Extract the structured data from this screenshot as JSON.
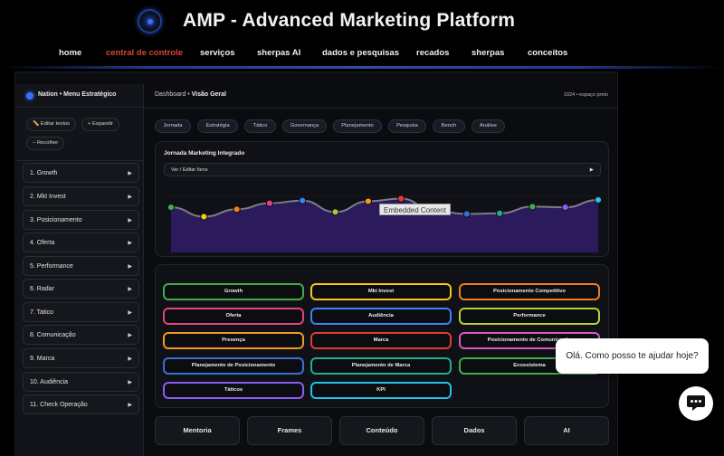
{
  "header": {
    "title": "AMP - Advanced Marketing Platform",
    "logo_icon": "target-logo-icon",
    "nav": [
      {
        "label": "home",
        "active": false
      },
      {
        "label": "central de controle",
        "active": true
      },
      {
        "label": "serviços",
        "active": false
      },
      {
        "label": "sherpas AI",
        "active": false
      },
      {
        "label": "dados e pesquisas",
        "active": false
      },
      {
        "label": "recados",
        "active": false
      },
      {
        "label": "sherpas",
        "active": false
      },
      {
        "label": "conceitos",
        "active": false
      }
    ]
  },
  "sidebar": {
    "title": "Nation • Menu Estratégico",
    "buttons": {
      "edit": "✏️ Editar textos",
      "expand": "+ Expandir",
      "collapse": "− Recolher"
    },
    "items": [
      {
        "label": "1. Growth"
      },
      {
        "label": "2. Mkt Invest"
      },
      {
        "label": "3. Posicionamento"
      },
      {
        "label": "4. Oferta"
      },
      {
        "label": "5. Performance"
      },
      {
        "label": "6. Radar"
      },
      {
        "label": "7. Tatico"
      },
      {
        "label": "8. Comunicação"
      },
      {
        "label": "9. Marca"
      },
      {
        "label": "10. Audiência"
      },
      {
        "label": "11. Check Operação"
      }
    ],
    "arrow": "▶"
  },
  "content": {
    "breadcrumb_prefix": "Dashboard • ",
    "breadcrumb_current": "Visão Geral",
    "resolution_note": "1024 • espaço preto",
    "chips": [
      "Jornada",
      "Estratégia",
      "Tático",
      "Governança",
      "Planejamento",
      "Pesquisa",
      "Bench",
      "Análise"
    ],
    "chart_card": {
      "title": "Jornada Marketing Integrado",
      "select_label": "Ver / Editar Itens",
      "select_arrow": "▶",
      "tooltip": "Embedded Content",
      "line_color": "#7d7d86",
      "fill_color": "#2b1b5c",
      "points": [
        {
          "value": 0.62,
          "color": "#3fae4a"
        },
        {
          "value": 0.48,
          "color": "#f5c518"
        },
        {
          "value": 0.59,
          "color": "#f07d24"
        },
        {
          "value": 0.68,
          "color": "#e0447c"
        },
        {
          "value": 0.72,
          "color": "#3b82f6"
        },
        {
          "value": 0.55,
          "color": "#a3c93a"
        },
        {
          "value": 0.71,
          "color": "#f39a1e"
        },
        {
          "value": 0.75,
          "color": "#e53935"
        },
        {
          "value": 0.57,
          "color": "#8a8a8a"
        },
        {
          "value": 0.52,
          "color": "#3b6fd6"
        },
        {
          "value": 0.53,
          "color": "#1fae8e"
        },
        {
          "value": 0.63,
          "color": "#3fae4a"
        },
        {
          "value": 0.62,
          "color": "#8b5cf6"
        },
        {
          "value": 0.73,
          "color": "#22c3e6"
        }
      ]
    },
    "grid_buttons": [
      {
        "label": "Growth",
        "color": "#3fae4a"
      },
      {
        "label": "Mkt Invest",
        "color": "#f5c518"
      },
      {
        "label": "Posicionamento Competitivo",
        "color": "#f07d24"
      },
      {
        "label": "Oferta",
        "color": "#e0447c"
      },
      {
        "label": "Audiência",
        "color": "#3b82f6"
      },
      {
        "label": "Performance",
        "color": "#b5d334"
      },
      {
        "label": "Presença",
        "color": "#f39a1e"
      },
      {
        "label": "Marca",
        "color": "#e53935"
      },
      {
        "label": "Posicionamento de Comunicação",
        "color": "#d85ac0"
      },
      {
        "label": "Planejamento de Posicionamento",
        "color": "#3b6fd6"
      },
      {
        "label": "Planejamento de Marca",
        "color": "#1fae8e"
      },
      {
        "label": "Ecossistema",
        "color": "#3fae4a"
      },
      {
        "label": "Táticos",
        "color": "#8b5cf6"
      },
      {
        "label": "KPI",
        "color": "#22c3e6"
      }
    ],
    "bottom_tabs": [
      "Mentoria",
      "Frames",
      "Conteúdo",
      "Dados",
      "AI"
    ]
  },
  "chat": {
    "bubble": "Olá. Como posso te ajudar hoje?",
    "fab_icon": "chat-icon"
  }
}
